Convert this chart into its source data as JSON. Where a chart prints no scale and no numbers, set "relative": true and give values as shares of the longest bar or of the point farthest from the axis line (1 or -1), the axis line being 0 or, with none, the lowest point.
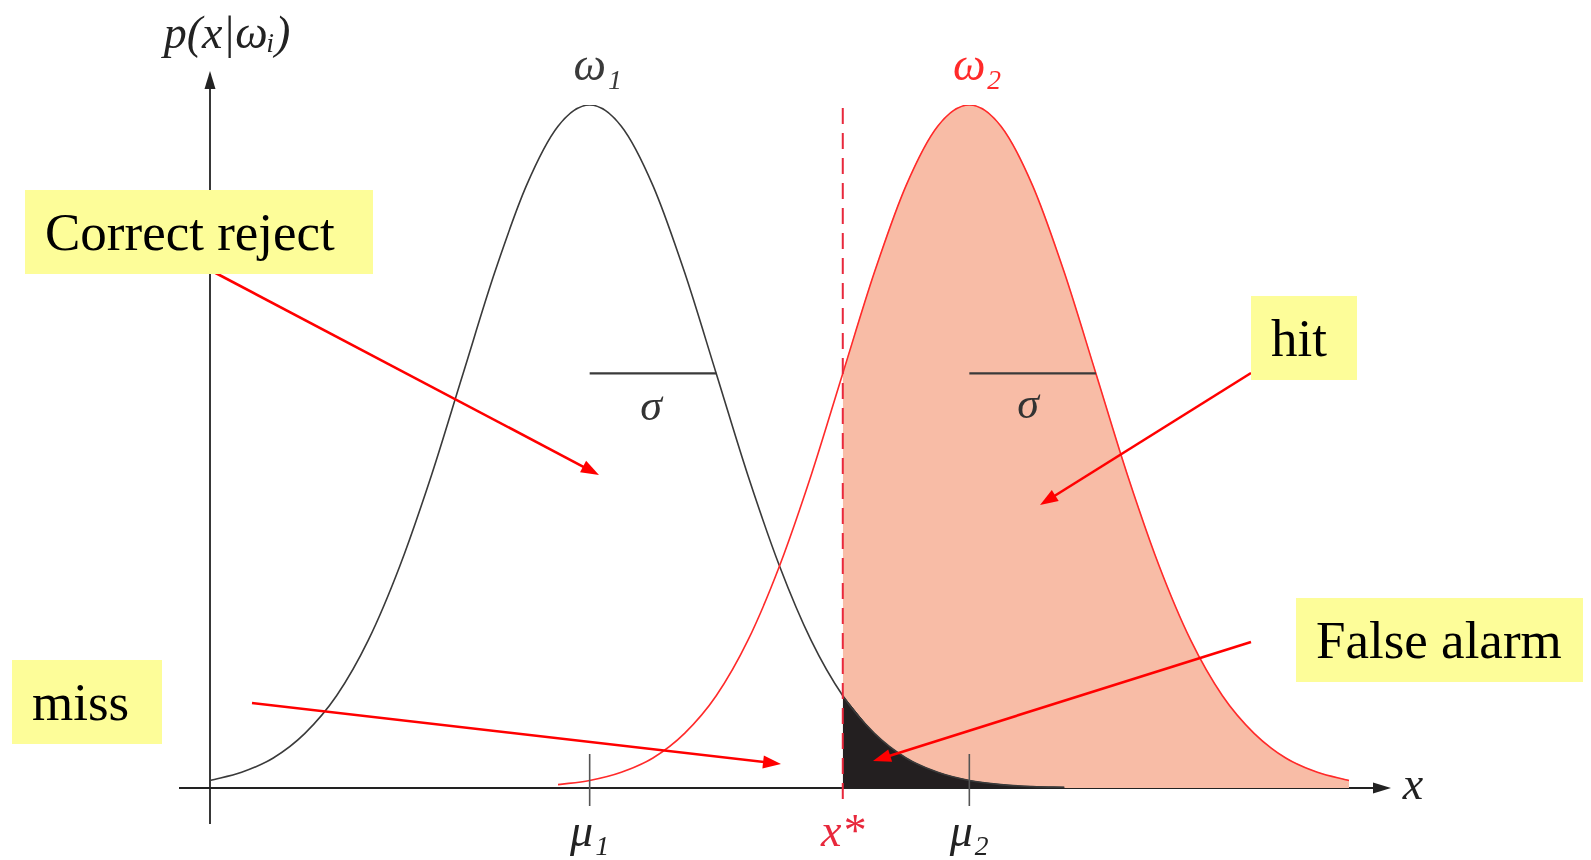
{
  "chart_data": {
    "type": "line",
    "relative": true,
    "marker": "none",
    "ylabel": "p(x|ωᵢ)",
    "xlabel": "x",
    "categories": [
      null,
      null,
      null,
      null,
      null,
      null,
      null,
      null,
      null,
      null,
      null,
      null,
      "μ₁",
      null,
      null,
      null,
      null,
      null,
      null,
      null,
      "x*",
      null,
      null,
      null,
      "μ₂",
      null,
      null,
      null,
      null,
      null,
      null,
      null,
      null,
      null,
      null,
      null,
      null
    ],
    "series": [
      {
        "name": "ω₁",
        "color": "#3a3a3a",
        "values": [
          0.011,
          0.023,
          0.044,
          0.08,
          0.135,
          0.216,
          0.325,
          0.458,
          0.607,
          0.755,
          0.882,
          0.969,
          1,
          0.969,
          0.882,
          0.755,
          0.607,
          0.458,
          0.325,
          0.216,
          0.135,
          0.08,
          0.044,
          0.023,
          0.011,
          0.005,
          0.002,
          0.001,
          null,
          null,
          null,
          null,
          null,
          null,
          null,
          null,
          null
        ]
      },
      {
        "name": "ω₂",
        "color": "#ff2a2a",
        "values": [
          null,
          null,
          null,
          null,
          null,
          null,
          null,
          null,
          null,
          null,
          null,
          0.005,
          0.011,
          0.023,
          0.044,
          0.08,
          0.135,
          0.216,
          0.325,
          0.458,
          0.607,
          0.755,
          0.882,
          0.969,
          1,
          0.969,
          0.882,
          0.755,
          0.607,
          0.458,
          0.325,
          0.216,
          0.135,
          0.08,
          0.044,
          0.023,
          0.011
        ]
      },
      {
        "type": "area",
        "color": "#f8bca6",
        "values": [
          null,
          null,
          null,
          null,
          null,
          null,
          null,
          null,
          null,
          null,
          null,
          null,
          null,
          null,
          null,
          null,
          null,
          null,
          null,
          null,
          0.607,
          0.755,
          0.882,
          0.969,
          1,
          0.969,
          0.882,
          0.755,
          0.607,
          0.458,
          0.325,
          0.216,
          0.135,
          0.08,
          0.044,
          0.023,
          0.011
        ]
      },
      {
        "type": "area",
        "color": "#231f20",
        "values": [
          null,
          null,
          null,
          null,
          null,
          null,
          null,
          null,
          null,
          null,
          null,
          null,
          null,
          null,
          null,
          null,
          null,
          null,
          null,
          null,
          0.135,
          0.08,
          0.044,
          0.023,
          0.011,
          0.005,
          0.002,
          0.001,
          null,
          null,
          null,
          null,
          null,
          null,
          null,
          null,
          null
        ]
      },
      {
        "color": "#3a3a3a",
        "values": [
          null,
          null,
          null,
          null,
          null,
          null,
          null,
          null,
          null,
          null,
          null,
          null,
          0.607,
          0.607,
          0.607,
          0.607,
          0.607,
          null,
          null,
          null,
          null,
          null,
          null,
          null,
          null,
          null,
          null,
          null,
          null,
          null,
          null,
          null,
          null,
          null,
          null,
          null,
          null
        ]
      },
      {
        "color": "#3a3a3a",
        "values": [
          null,
          null,
          null,
          null,
          null,
          null,
          null,
          null,
          null,
          null,
          null,
          null,
          null,
          null,
          null,
          null,
          null,
          null,
          null,
          null,
          null,
          null,
          null,
          null,
          0.607,
          0.607,
          0.607,
          0.607,
          0.607,
          null,
          null,
          null,
          null,
          null,
          null,
          null,
          null
        ]
      }
    ],
    "ref_lines": [
      {
        "axis": "x",
        "value": "x*",
        "color": "#e8283c",
        "line_style": "dashed"
      }
    ],
    "annotations": [
      "Correct reject",
      "hit",
      "miss",
      "False alarm",
      "σ",
      "σ"
    ]
  }
}
